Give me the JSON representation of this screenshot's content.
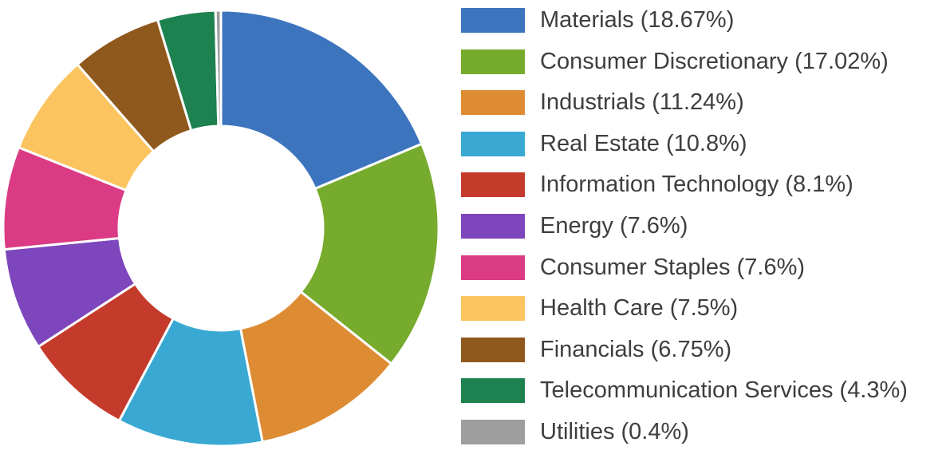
{
  "chart_data": {
    "type": "pie",
    "variant": "donut",
    "title": "",
    "legend_position": "right",
    "start_angle_deg": -90,
    "direction": "clockwise",
    "inner_radius_ratio": 0.47,
    "slice_separator_color": "#ffffff",
    "background_color": "#ffffff",
    "legend_text_color": "#3e3e3e",
    "series": [
      {
        "label": "Materials",
        "value": 18.67,
        "color": "#3d74be",
        "legend_label": "Materials (18.67%)"
      },
      {
        "label": "Consumer Discretionary",
        "value": 17.02,
        "color": "#77ab2d",
        "legend_label": "Consumer Discretionary (17.02%)"
      },
      {
        "label": "Industrials",
        "value": 11.24,
        "color": "#de8c33",
        "legend_label": "Industrials (11.24%)"
      },
      {
        "label": "Real Estate",
        "value": 10.8,
        "color": "#39a9d4",
        "legend_label": "Real Estate (10.8%)"
      },
      {
        "label": "Information Technology",
        "value": 8.1,
        "color": "#c43b2c",
        "legend_label": "Information Technology (8.1%)"
      },
      {
        "label": "Energy",
        "value": 7.6,
        "color": "#7e46bd",
        "legend_label": "Energy (7.6%)"
      },
      {
        "label": "Consumer Staples",
        "value": 7.6,
        "color": "#db3b84",
        "legend_label": "Consumer Staples (7.6%)"
      },
      {
        "label": "Health Care",
        "value": 7.5,
        "color": "#fbc45f",
        "legend_label": "Health Care (7.5%)"
      },
      {
        "label": "Financials",
        "value": 6.75,
        "color": "#8f581c",
        "legend_label": "Financials (6.75%)"
      },
      {
        "label": "Telecommunication Services",
        "value": 4.3,
        "color": "#1d8150",
        "legend_label": "Telecommunication Services (4.3%)"
      },
      {
        "label": "Utilities",
        "value": 0.4,
        "color": "#9e9e9e",
        "legend_label": "Utilities (0.4%)"
      }
    ]
  }
}
